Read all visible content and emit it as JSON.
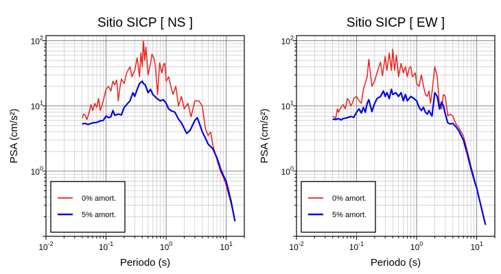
{
  "chart_data": [
    {
      "type": "line",
      "title": "Sitio SICP [ NS ]",
      "xlabel": "Periodo (s)",
      "ylabel": "PSA (cm/s²)",
      "xscale": "log",
      "yscale": "log",
      "xlim": [
        0.01,
        20
      ],
      "ylim": [
        0.1,
        120
      ],
      "grid": true,
      "legend_position": "bottom-left",
      "x_ticks": [
        "10-2",
        "10-1",
        "100",
        "101"
      ],
      "y_ticks": [
        "100",
        "101",
        "102"
      ],
      "series": [
        {
          "name": "0% amort.",
          "color": "#e8201c",
          "points": [
            [
              0.04,
              6.5
            ],
            [
              0.042,
              7.5
            ],
            [
              0.045,
              7.2
            ],
            [
              0.048,
              6.2
            ],
            [
              0.052,
              7.8
            ],
            [
              0.056,
              10.5
            ],
            [
              0.06,
              8.5
            ],
            [
              0.065,
              11
            ],
            [
              0.07,
              9.5
            ],
            [
              0.075,
              13
            ],
            [
              0.08,
              8.5
            ],
            [
              0.085,
              10
            ],
            [
              0.09,
              12
            ],
            [
              0.1,
              18
            ],
            [
              0.11,
              20
            ],
            [
              0.12,
              17
            ],
            [
              0.13,
              24
            ],
            [
              0.14,
              21
            ],
            [
              0.15,
              25
            ],
            [
              0.16,
              12
            ],
            [
              0.17,
              19
            ],
            [
              0.18,
              26
            ],
            [
              0.2,
              22
            ],
            [
              0.22,
              32
            ],
            [
              0.25,
              40
            ],
            [
              0.27,
              28
            ],
            [
              0.3,
              35
            ],
            [
              0.33,
              55
            ],
            [
              0.36,
              28
            ],
            [
              0.38,
              65
            ],
            [
              0.4,
              40
            ],
            [
              0.42,
              100
            ],
            [
              0.44,
              50
            ],
            [
              0.46,
              80
            ],
            [
              0.5,
              30
            ],
            [
              0.55,
              45
            ],
            [
              0.58,
              62
            ],
            [
              0.62,
              55
            ],
            [
              0.66,
              42
            ],
            [
              0.72,
              15
            ],
            [
              0.78,
              46
            ],
            [
              0.85,
              32
            ],
            [
              0.9,
              43
            ],
            [
              0.95,
              45
            ],
            [
              1.0,
              24
            ],
            [
              1.1,
              28
            ],
            [
              1.2,
              20
            ],
            [
              1.3,
              15
            ],
            [
              1.45,
              20
            ],
            [
              1.6,
              10
            ],
            [
              1.8,
              14
            ],
            [
              2.0,
              9
            ],
            [
              2.3,
              11
            ],
            [
              2.6,
              6.8
            ],
            [
              3.0,
              12
            ],
            [
              3.5,
              12
            ],
            [
              4.0,
              10
            ],
            [
              4.5,
              4.5
            ],
            [
              5.0,
              3.5
            ],
            [
              5.5,
              4.0
            ],
            [
              6.0,
              2.5
            ],
            [
              7.0,
              1.5
            ],
            [
              8.0,
              1.0
            ],
            [
              9.0,
              0.8
            ],
            [
              10,
              0.6
            ],
            [
              12,
              0.32
            ],
            [
              14,
              0.17
            ]
          ]
        },
        {
          "name": "5% amort.",
          "color": "#0000e6",
          "points": [
            [
              0.04,
              5.3
            ],
            [
              0.045,
              5.4
            ],
            [
              0.05,
              5.2
            ],
            [
              0.06,
              5.5
            ],
            [
              0.07,
              5.6
            ],
            [
              0.08,
              5.9
            ],
            [
              0.09,
              6.0
            ],
            [
              0.1,
              7.0
            ],
            [
              0.11,
              6.6
            ],
            [
              0.12,
              6.8
            ],
            [
              0.13,
              8.5
            ],
            [
              0.14,
              7.2
            ],
            [
              0.16,
              7.5
            ],
            [
              0.18,
              7.3
            ],
            [
              0.2,
              9.5
            ],
            [
              0.22,
              10.5
            ],
            [
              0.25,
              12
            ],
            [
              0.28,
              16
            ],
            [
              0.3,
              14
            ],
            [
              0.33,
              18
            ],
            [
              0.36,
              22
            ],
            [
              0.38,
              23
            ],
            [
              0.4,
              24
            ],
            [
              0.42,
              22
            ],
            [
              0.45,
              21
            ],
            [
              0.5,
              16
            ],
            [
              0.55,
              18
            ],
            [
              0.6,
              15
            ],
            [
              0.65,
              14
            ],
            [
              0.7,
              13
            ],
            [
              0.8,
              12
            ],
            [
              0.9,
              12.5
            ],
            [
              1.0,
              11
            ],
            [
              1.1,
              9
            ],
            [
              1.2,
              8.5
            ],
            [
              1.4,
              8
            ],
            [
              1.6,
              6.3
            ],
            [
              1.8,
              5.5
            ],
            [
              2.0,
              4.5
            ],
            [
              2.2,
              3.8
            ],
            [
              2.5,
              4.2
            ],
            [
              3.0,
              6.0
            ],
            [
              3.3,
              6.6
            ],
            [
              3.6,
              5.3
            ],
            [
              4.0,
              4.0
            ],
            [
              4.5,
              3.2
            ],
            [
              5.0,
              2.6
            ],
            [
              6.0,
              2.2
            ],
            [
              7.0,
              1.6
            ],
            [
              8.0,
              1.1
            ],
            [
              9.0,
              0.85
            ],
            [
              10,
              0.7
            ],
            [
              12,
              0.35
            ],
            [
              14,
              0.17
            ]
          ]
        }
      ]
    },
    {
      "type": "line",
      "title": "Sitio SICP [ EW ]",
      "xlabel": "Periodo (s)",
      "ylabel": "PSA (cm/s²)",
      "xscale": "log",
      "yscale": "log",
      "xlim": [
        0.01,
        20
      ],
      "ylim": [
        0.1,
        120
      ],
      "grid": true,
      "legend_position": "bottom-left",
      "x_ticks": [
        "10-2",
        "10-1",
        "100",
        "101"
      ],
      "y_ticks": [
        "100",
        "101",
        "102"
      ],
      "series": [
        {
          "name": "0% amort.",
          "color": "#e8201c",
          "points": [
            [
              0.04,
              7.0
            ],
            [
              0.042,
              6.8
            ],
            [
              0.045,
              6.5
            ],
            [
              0.048,
              9.0
            ],
            [
              0.05,
              8.0
            ],
            [
              0.055,
              9.5
            ],
            [
              0.06,
              10.5
            ],
            [
              0.065,
              9.0
            ],
            [
              0.07,
              13
            ],
            [
              0.075,
              12
            ],
            [
              0.08,
              10
            ],
            [
              0.085,
              11
            ],
            [
              0.09,
              13
            ],
            [
              0.1,
              14
            ],
            [
              0.11,
              12
            ],
            [
              0.12,
              11
            ],
            [
              0.13,
              18
            ],
            [
              0.15,
              28
            ],
            [
              0.16,
              52
            ],
            [
              0.18,
              20
            ],
            [
              0.2,
              24
            ],
            [
              0.22,
              33
            ],
            [
              0.25,
              47
            ],
            [
              0.27,
              29
            ],
            [
              0.3,
              58
            ],
            [
              0.32,
              35
            ],
            [
              0.35,
              65
            ],
            [
              0.38,
              35
            ],
            [
              0.4,
              75
            ],
            [
              0.43,
              35
            ],
            [
              0.46,
              60
            ],
            [
              0.5,
              28
            ],
            [
              0.55,
              45
            ],
            [
              0.6,
              32
            ],
            [
              0.65,
              40
            ],
            [
              0.7,
              28
            ],
            [
              0.75,
              38
            ],
            [
              0.8,
              40
            ],
            [
              0.85,
              28
            ],
            [
              0.9,
              30
            ],
            [
              0.95,
              32
            ],
            [
              1.0,
              22
            ],
            [
              1.1,
              20
            ],
            [
              1.2,
              30
            ],
            [
              1.3,
              20
            ],
            [
              1.4,
              15
            ],
            [
              1.5,
              14
            ],
            [
              1.6,
              17
            ],
            [
              1.7,
              11
            ],
            [
              1.8,
              16
            ],
            [
              2.0,
              40
            ],
            [
              2.2,
              28
            ],
            [
              2.4,
              10
            ],
            [
              2.6,
              9
            ],
            [
              2.8,
              15
            ],
            [
              3.0,
              14
            ],
            [
              3.3,
              7.0
            ],
            [
              3.6,
              7.5
            ],
            [
              4.0,
              7.0
            ],
            [
              4.5,
              5.3
            ],
            [
              5.0,
              4.7
            ],
            [
              6.0,
              3.5
            ],
            [
              7.0,
              2.0
            ],
            [
              8.0,
              1.2
            ],
            [
              9.0,
              0.8
            ],
            [
              10,
              0.55
            ],
            [
              12,
              0.26
            ],
            [
              14,
              0.15
            ]
          ]
        },
        {
          "name": "5% amort.",
          "color": "#0000e6",
          "points": [
            [
              0.04,
              6.3
            ],
            [
              0.045,
              6.2
            ],
            [
              0.05,
              6.4
            ],
            [
              0.055,
              6.1
            ],
            [
              0.06,
              6.4
            ],
            [
              0.07,
              6.6
            ],
            [
              0.08,
              6.9
            ],
            [
              0.09,
              6.7
            ],
            [
              0.1,
              8.0
            ],
            [
              0.11,
              9.0
            ],
            [
              0.12,
              7.8
            ],
            [
              0.13,
              9.5
            ],
            [
              0.14,
              8.0
            ],
            [
              0.15,
              11
            ],
            [
              0.16,
              12.5
            ],
            [
              0.18,
              8.2
            ],
            [
              0.2,
              11
            ],
            [
              0.22,
              13
            ],
            [
              0.25,
              14
            ],
            [
              0.28,
              17
            ],
            [
              0.3,
              14
            ],
            [
              0.32,
              16
            ],
            [
              0.35,
              13
            ],
            [
              0.38,
              18
            ],
            [
              0.4,
              15
            ],
            [
              0.45,
              16
            ],
            [
              0.5,
              14
            ],
            [
              0.55,
              16
            ],
            [
              0.6,
              12
            ],
            [
              0.65,
              15
            ],
            [
              0.7,
              12
            ],
            [
              0.8,
              14
            ],
            [
              0.9,
              13
            ],
            [
              1.0,
              12
            ],
            [
              1.1,
              9.5
            ],
            [
              1.2,
              8.5
            ],
            [
              1.3,
              9.5
            ],
            [
              1.4,
              8.0
            ],
            [
              1.5,
              7.5
            ],
            [
              1.6,
              8.5
            ],
            [
              1.8,
              7.0
            ],
            [
              2.0,
              16
            ],
            [
              2.2,
              14
            ],
            [
              2.4,
              9.0
            ],
            [
              2.6,
              11.5
            ],
            [
              2.8,
              10
            ],
            [
              3.0,
              7.5
            ],
            [
              3.3,
              5.5
            ],
            [
              3.6,
              5.3
            ],
            [
              4.0,
              5.4
            ],
            [
              4.5,
              4.8
            ],
            [
              5.0,
              4.2
            ],
            [
              6.0,
              3.0
            ],
            [
              7.0,
              1.8
            ],
            [
              8.0,
              1.1
            ],
            [
              9.0,
              0.75
            ],
            [
              10,
              0.55
            ],
            [
              12,
              0.27
            ],
            [
              14,
              0.15
            ]
          ]
        }
      ]
    }
  ]
}
